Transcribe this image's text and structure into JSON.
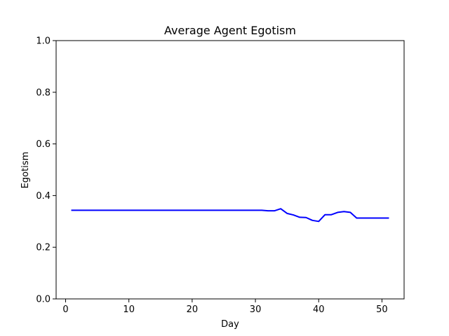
{
  "chart_data": {
    "type": "line",
    "title": "Average Agent Egotism",
    "xlabel": "Day",
    "ylabel": "Egotism",
    "xlim": [
      -1.5,
      53.5
    ],
    "ylim": [
      0.0,
      1.0
    ],
    "xticks": [
      0,
      10,
      20,
      30,
      40,
      50
    ],
    "xtick_labels": [
      "0",
      "10",
      "20",
      "30",
      "40",
      "50"
    ],
    "yticks": [
      0.0,
      0.2,
      0.4,
      0.6,
      0.8,
      1.0
    ],
    "ytick_labels": [
      "0.0",
      "0.2",
      "0.4",
      "0.6",
      "0.8",
      "1.0"
    ],
    "grid": false,
    "series": [
      {
        "color": "#0000ff",
        "x": [
          1,
          2,
          3,
          4,
          5,
          6,
          7,
          8,
          9,
          10,
          11,
          12,
          13,
          14,
          15,
          16,
          17,
          18,
          19,
          20,
          21,
          22,
          23,
          24,
          25,
          26,
          27,
          28,
          29,
          30,
          31,
          32,
          33,
          34,
          35,
          36,
          37,
          38,
          39,
          40,
          41,
          42,
          43,
          44,
          45,
          46,
          47,
          48,
          49,
          50,
          51
        ],
        "y": [
          0.343,
          0.343,
          0.343,
          0.343,
          0.343,
          0.343,
          0.343,
          0.343,
          0.343,
          0.343,
          0.343,
          0.343,
          0.343,
          0.343,
          0.343,
          0.343,
          0.343,
          0.343,
          0.343,
          0.343,
          0.343,
          0.343,
          0.343,
          0.343,
          0.343,
          0.343,
          0.343,
          0.343,
          0.343,
          0.343,
          0.343,
          0.341,
          0.341,
          0.349,
          0.331,
          0.325,
          0.316,
          0.315,
          0.304,
          0.3,
          0.326,
          0.326,
          0.335,
          0.338,
          0.335,
          0.313,
          0.313,
          0.313,
          0.313,
          0.313,
          0.313
        ]
      }
    ]
  }
}
